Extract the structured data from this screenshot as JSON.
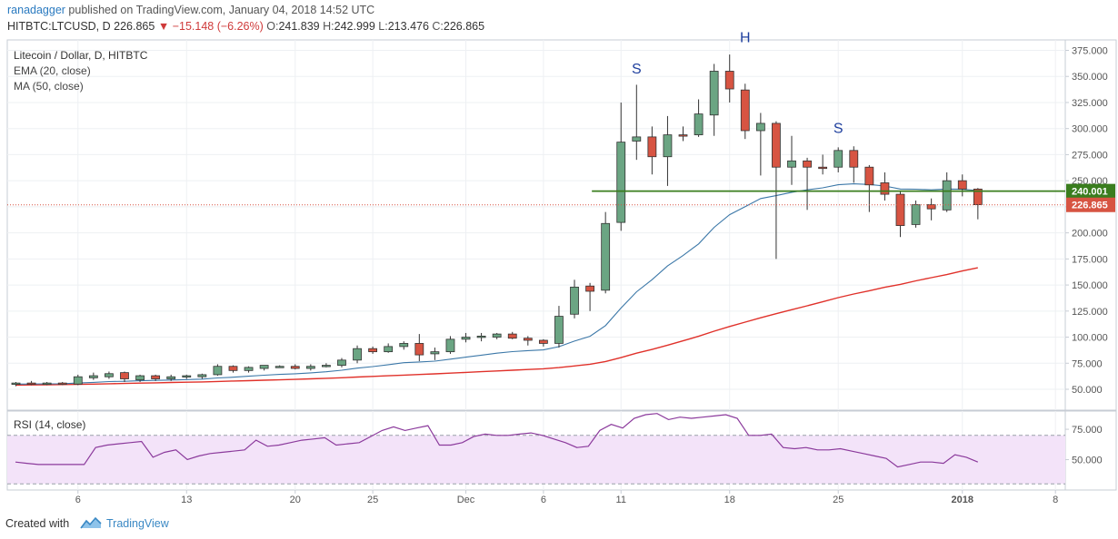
{
  "header": {
    "author": "ranadagger",
    "published": " published on TradingView.com, January 04, 2018 14:52 UTC",
    "symbol": "HITBTC:LTCUSD, D",
    "last": "226.865",
    "change": "−15.148 (−6.26%)",
    "o_label": "O:",
    "open": "241.839",
    "h_label": "H:",
    "high": "242.999",
    "l_label": "L:",
    "low": "213.476",
    "c_label": "C:",
    "close": "226.865"
  },
  "footer": {
    "created": "Created with",
    "brand": "TradingView"
  },
  "chart_data": {
    "type": "candlestick",
    "title": "Litecoin / Dollar, D, HITBTC",
    "indicators": [
      "EMA (20, close)",
      "MA (50, close)"
    ],
    "price_axis": {
      "min": 30,
      "max": 385,
      "ticks": [
        50,
        75,
        100,
        125,
        150,
        175,
        200,
        225,
        250,
        275,
        300,
        325,
        350,
        375
      ],
      "tick_labels": [
        "50.000",
        "75.000",
        "100.000",
        "125.000",
        "150.000",
        "175.000",
        "200.000",
        "225.000",
        "250.000",
        "275.000",
        "300.000",
        "325.000",
        "350.000",
        "375.000"
      ]
    },
    "x_axis": {
      "ticks": [
        {
          "i": 4,
          "label": "6"
        },
        {
          "i": 11,
          "label": "13"
        },
        {
          "i": 18,
          "label": "20"
        },
        {
          "i": 23,
          "label": "25"
        },
        {
          "i": 29,
          "label": "Dec"
        },
        {
          "i": 34,
          "label": "6"
        },
        {
          "i": 39,
          "label": "11"
        },
        {
          "i": 46,
          "label": "18"
        },
        {
          "i": 53,
          "label": "25"
        },
        {
          "i": 61,
          "label": "2018"
        },
        {
          "i": 67,
          "label": "8"
        }
      ]
    },
    "colors": {
      "up": "#6ba583",
      "down": "#d75442",
      "ema": "#3c78a8",
      "ma": "#e0312a",
      "resistance": "#3a7d1e",
      "rsi": "#8b3a9c",
      "rsi_band": "#f3e3f9"
    },
    "candles": [
      {
        "o": 55,
        "h": 57,
        "l": 53,
        "c": 56
      },
      {
        "o": 56,
        "h": 58,
        "l": 54,
        "c": 55
      },
      {
        "o": 55,
        "h": 57,
        "l": 54,
        "c": 56
      },
      {
        "o": 56,
        "h": 57,
        "l": 54,
        "c": 55
      },
      {
        "o": 55,
        "h": 64,
        "l": 54,
        "c": 62
      },
      {
        "o": 61,
        "h": 66,
        "l": 59,
        "c": 63
      },
      {
        "o": 62,
        "h": 67,
        "l": 60,
        "c": 65
      },
      {
        "o": 66,
        "h": 67,
        "l": 57,
        "c": 60
      },
      {
        "o": 59,
        "h": 64,
        "l": 57,
        "c": 63
      },
      {
        "o": 63,
        "h": 64,
        "l": 58,
        "c": 60
      },
      {
        "o": 60,
        "h": 64,
        "l": 58,
        "c": 62
      },
      {
        "o": 62,
        "h": 64,
        "l": 60,
        "c": 63
      },
      {
        "o": 62,
        "h": 65,
        "l": 60,
        "c": 64
      },
      {
        "o": 64,
        "h": 74,
        "l": 63,
        "c": 72
      },
      {
        "o": 72,
        "h": 73,
        "l": 66,
        "c": 68
      },
      {
        "o": 68,
        "h": 72,
        "l": 66,
        "c": 71
      },
      {
        "o": 70,
        "h": 73,
        "l": 68,
        "c": 73
      },
      {
        "o": 72,
        "h": 73,
        "l": 71,
        "c": 72
      },
      {
        "o": 72,
        "h": 74,
        "l": 69,
        "c": 70
      },
      {
        "o": 70,
        "h": 74,
        "l": 68,
        "c": 72
      },
      {
        "o": 72,
        "h": 75,
        "l": 71,
        "c": 73
      },
      {
        "o": 73,
        "h": 80,
        "l": 71,
        "c": 78
      },
      {
        "o": 78,
        "h": 92,
        "l": 75,
        "c": 89
      },
      {
        "o": 89,
        "h": 91,
        "l": 84,
        "c": 86
      },
      {
        "o": 86,
        "h": 94,
        "l": 85,
        "c": 91
      },
      {
        "o": 91,
        "h": 96,
        "l": 88,
        "c": 94
      },
      {
        "o": 94,
        "h": 103,
        "l": 77,
        "c": 83
      },
      {
        "o": 84,
        "h": 90,
        "l": 78,
        "c": 86
      },
      {
        "o": 86,
        "h": 101,
        "l": 84,
        "c": 98
      },
      {
        "o": 98,
        "h": 104,
        "l": 95,
        "c": 100
      },
      {
        "o": 100,
        "h": 104,
        "l": 96,
        "c": 101
      },
      {
        "o": 100,
        "h": 104,
        "l": 98,
        "c": 103
      },
      {
        "o": 103,
        "h": 105,
        "l": 98,
        "c": 99
      },
      {
        "o": 99,
        "h": 101,
        "l": 92,
        "c": 97
      },
      {
        "o": 97,
        "h": 98,
        "l": 91,
        "c": 94
      },
      {
        "o": 94,
        "h": 130,
        "l": 90,
        "c": 120
      },
      {
        "o": 122,
        "h": 155,
        "l": 118,
        "c": 148
      },
      {
        "o": 149,
        "h": 152,
        "l": 125,
        "c": 144
      },
      {
        "o": 145,
        "h": 220,
        "l": 142,
        "c": 209
      },
      {
        "o": 210,
        "h": 325,
        "l": 202,
        "c": 287
      },
      {
        "o": 288,
        "h": 342,
        "l": 270,
        "c": 292
      },
      {
        "o": 292,
        "h": 302,
        "l": 256,
        "c": 273
      },
      {
        "o": 273,
        "h": 312,
        "l": 245,
        "c": 294
      },
      {
        "o": 294,
        "h": 302,
        "l": 288,
        "c": 293
      },
      {
        "o": 294,
        "h": 328,
        "l": 292,
        "c": 314
      },
      {
        "o": 313,
        "h": 362,
        "l": 293,
        "c": 355
      },
      {
        "o": 355,
        "h": 371,
        "l": 325,
        "c": 338
      },
      {
        "o": 337,
        "h": 343,
        "l": 290,
        "c": 298
      },
      {
        "o": 298,
        "h": 315,
        "l": 255,
        "c": 305
      },
      {
        "o": 305,
        "h": 307,
        "l": 175,
        "c": 263
      },
      {
        "o": 263,
        "h": 293,
        "l": 246,
        "c": 269
      },
      {
        "o": 269,
        "h": 272,
        "l": 222,
        "c": 263
      },
      {
        "o": 263,
        "h": 275,
        "l": 256,
        "c": 262
      },
      {
        "o": 263,
        "h": 282,
        "l": 258,
        "c": 279
      },
      {
        "o": 279,
        "h": 283,
        "l": 248,
        "c": 263
      },
      {
        "o": 263,
        "h": 265,
        "l": 220,
        "c": 246
      },
      {
        "o": 248,
        "h": 258,
        "l": 231,
        "c": 237
      },
      {
        "o": 237,
        "h": 240,
        "l": 196,
        "c": 207
      },
      {
        "o": 208,
        "h": 231,
        "l": 205,
        "c": 227
      },
      {
        "o": 227,
        "h": 233,
        "l": 212,
        "c": 223
      },
      {
        "o": 222,
        "h": 258,
        "l": 220,
        "c": 250
      },
      {
        "o": 250,
        "h": 256,
        "l": 235,
        "c": 242
      },
      {
        "o": 242,
        "h": 243,
        "l": 213,
        "c": 227
      }
    ],
    "ema20": [
      55,
      55.1,
      55.2,
      55.3,
      56,
      56.6,
      57.4,
      57.7,
      58.2,
      58.5,
      58.9,
      59.3,
      59.8,
      60.9,
      61.6,
      62.5,
      63.5,
      64.3,
      64.9,
      65.8,
      66.8,
      68.3,
      70.3,
      71.8,
      73.6,
      75.5,
      76.2,
      77,
      78.9,
      80.8,
      82.7,
      84.6,
      86.1,
      87.1,
      87.8,
      90.9,
      96.2,
      100.8,
      111.1,
      127.9,
      143.5,
      155.1,
      168.3,
      178.3,
      189.4,
      205.2,
      217.4,
      225.1,
      232.9,
      235.7,
      238.9,
      241.3,
      243.2,
      246.1,
      247,
      246.4,
      244.9,
      242,
      241.9,
      241.3,
      242,
      241.9,
      240.5
    ],
    "ma50": [
      54,
      54.2,
      54.3,
      54.5,
      54.7,
      55,
      55.3,
      55.6,
      55.9,
      56.2,
      56.5,
      56.8,
      57.1,
      57.5,
      57.9,
      58.3,
      58.7,
      59.1,
      59.5,
      60,
      60.5,
      61.1,
      61.8,
      62.4,
      63,
      63.6,
      64.2,
      64.8,
      65.5,
      66.2,
      66.9,
      67.6,
      68.3,
      69,
      69.7,
      70.8,
      72.4,
      74,
      76.6,
      80.4,
      84.6,
      88.2,
      92.3,
      96.5,
      100.8,
      105.7,
      110.2,
      114.4,
      118.6,
      122.5,
      126.3,
      130.1,
      133.9,
      137.9,
      141.4,
      144.5,
      147.8,
      150.6,
      154,
      157,
      160,
      163.5,
      166.5
    ],
    "resistance": {
      "value": 240.001,
      "label": "240.001",
      "from_index": 38
    },
    "last_price": {
      "value": 226.865,
      "label": "226.865"
    },
    "annotations": [
      {
        "i": 40,
        "y": 353,
        "text": "S"
      },
      {
        "i": 47,
        "y": 383,
        "text": "H"
      },
      {
        "i": 53,
        "y": 296,
        "text": "S"
      }
    ],
    "rsi": {
      "label": "RSI (14, close)",
      "range": [
        25,
        90
      ],
      "band": [
        30,
        70
      ],
      "ticks": [
        50,
        75
      ],
      "tick_labels": [
        "50.000",
        "75.000"
      ],
      "values": [
        48,
        47,
        46,
        46,
        46,
        46,
        46,
        60,
        62,
        63,
        64,
        65,
        52,
        56,
        58,
        50,
        53,
        55,
        56,
        57,
        58,
        66,
        61,
        62,
        64,
        66,
        67,
        68,
        62,
        63,
        64,
        69,
        74,
        77,
        74,
        76,
        78,
        62,
        62,
        64,
        69,
        71,
        70,
        70,
        71,
        72,
        70,
        67,
        64,
        60,
        61,
        74,
        79,
        76,
        84,
        87,
        88,
        83,
        85,
        84,
        85,
        86,
        87,
        84,
        70,
        70,
        71,
        60,
        59,
        60,
        58,
        58,
        59,
        57,
        55,
        53,
        51,
        44,
        46,
        48,
        48,
        47,
        54,
        52,
        48
      ]
    }
  }
}
